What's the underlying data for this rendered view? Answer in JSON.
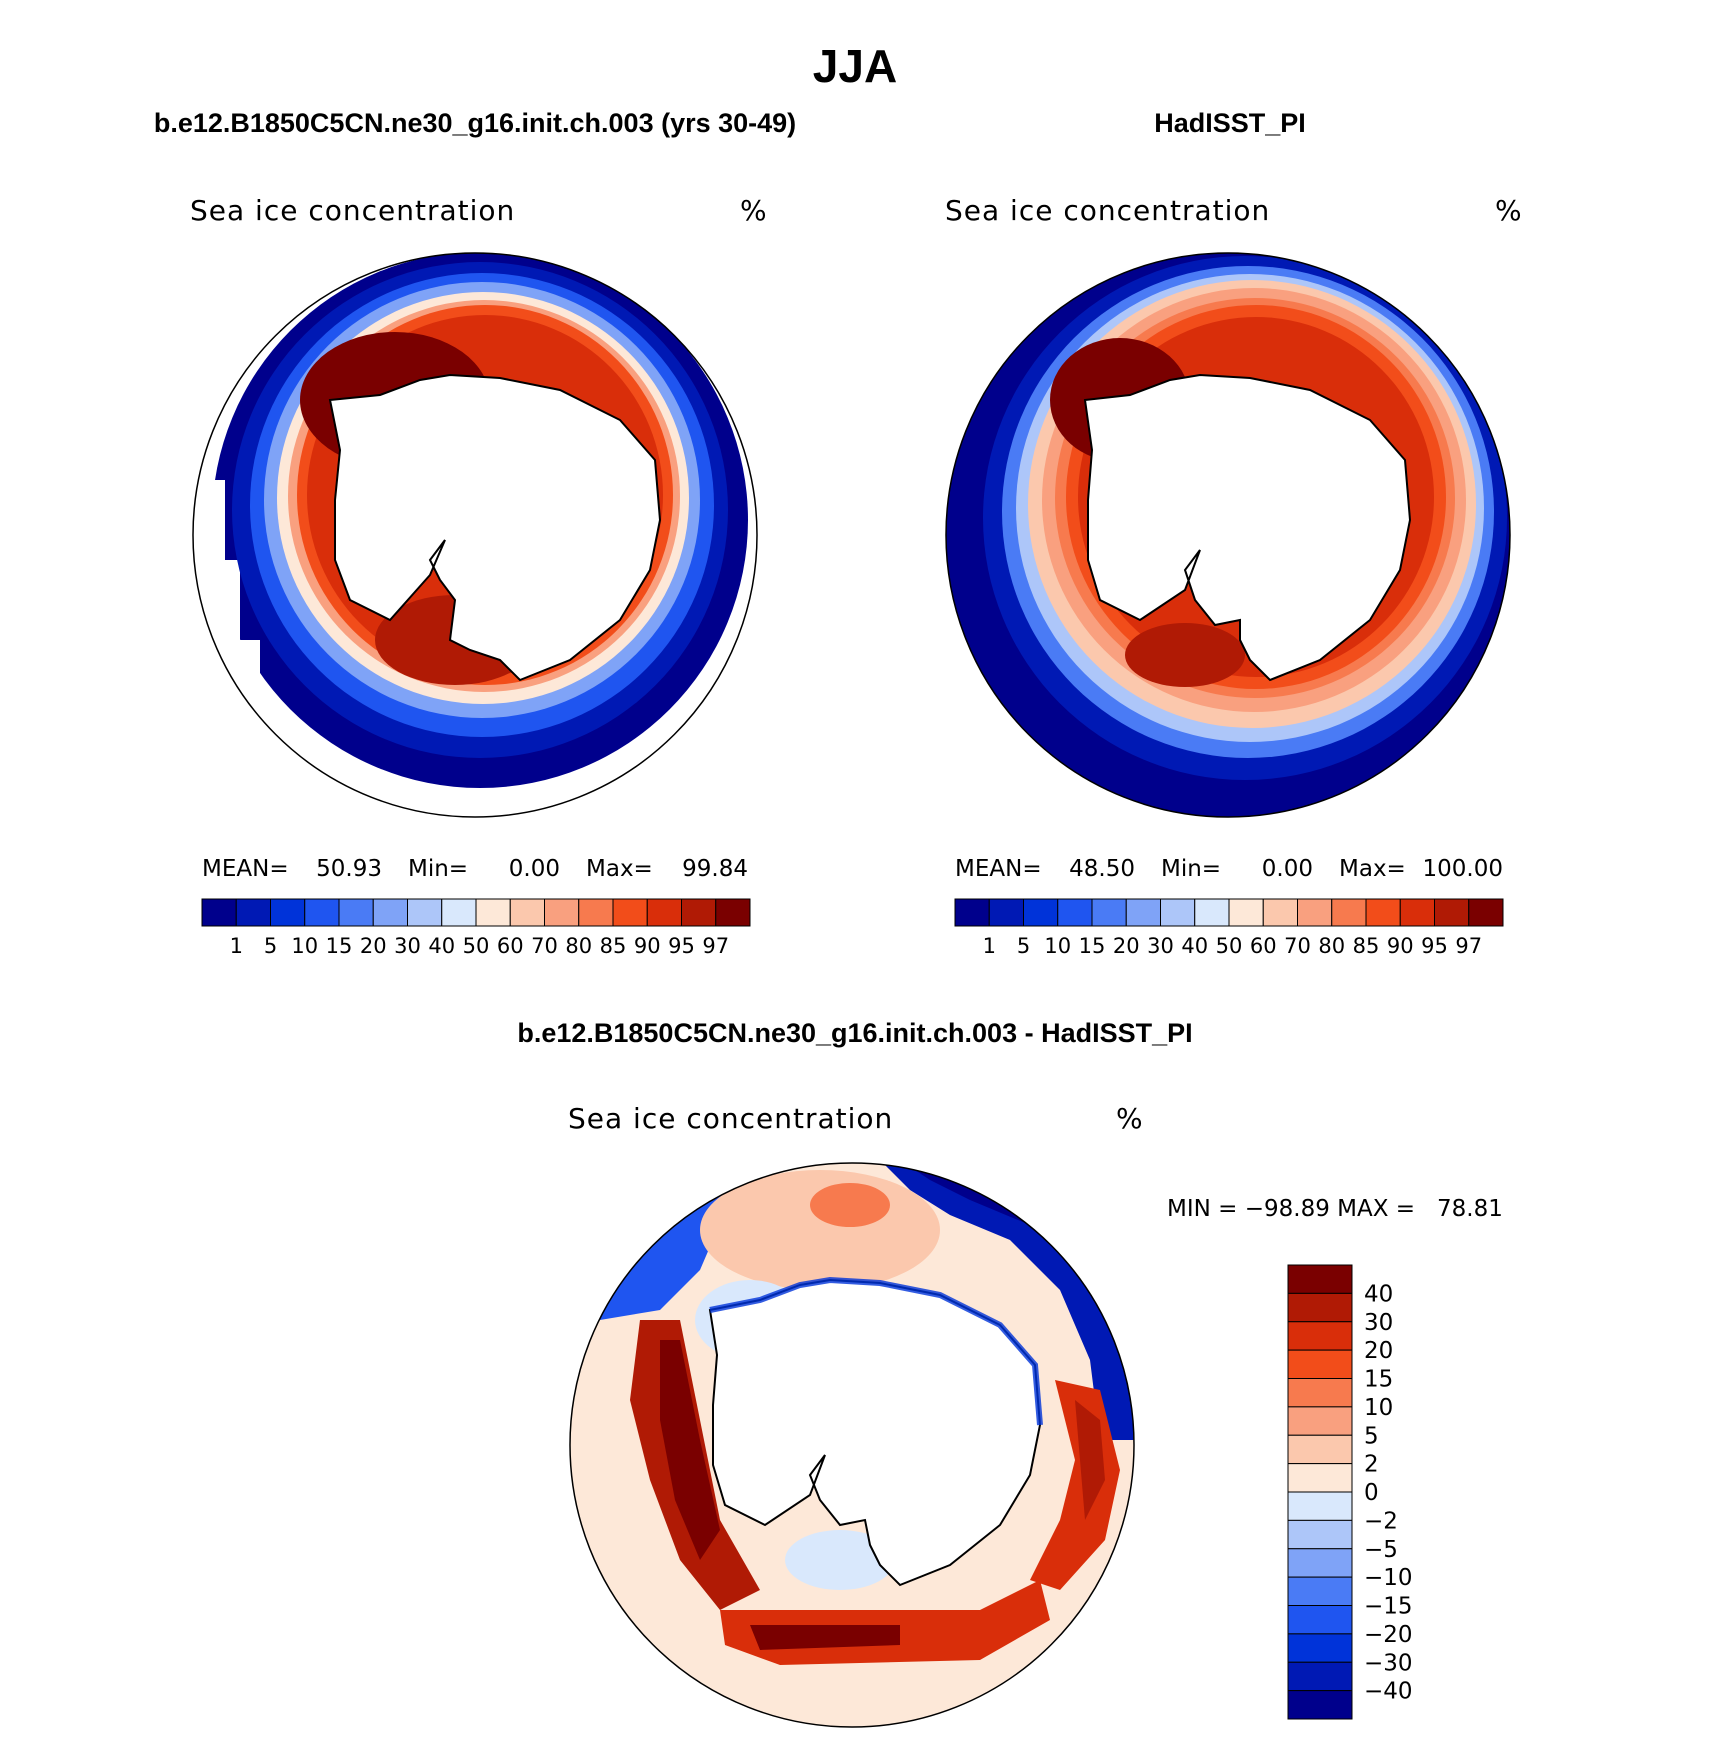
{
  "figure": {
    "season": "JJA",
    "panels": [
      {
        "title": "b.e12.B1850C5CN.ne30_g16.init.ch.003 (yrs 30-49)",
        "variable": "Sea ice concentration",
        "units": "%",
        "stats": {
          "mean_label": "MEAN=",
          "mean": "50.93",
          "min_label": "Min=",
          "min": "0.00",
          "max_label": "Max=",
          "max": "99.84"
        }
      },
      {
        "title": "HadISST_PI",
        "variable": "Sea ice concentration",
        "units": "%",
        "stats": {
          "mean_label": "MEAN=",
          "mean": "48.50",
          "min_label": "Min=",
          "min": "0.00",
          "max_label": "Max=",
          "max": "100.00"
        }
      },
      {
        "title": "b.e12.B1850C5CN.ne30_g16.init.ch.003 - HadISST_PI",
        "variable": "Sea ice concentration",
        "units": "%",
        "range_text": "MIN = −98.89 MAX =   78.81"
      }
    ],
    "colorbar_main": {
      "labels": [
        "1",
        "5",
        "10",
        "15",
        "20",
        "30",
        "40",
        "50",
        "60",
        "70",
        "80",
        "85",
        "90",
        "95",
        "97"
      ],
      "colors": [
        "#00008c",
        "#0019b4",
        "#0033d9",
        "#1f55f0",
        "#4a7bf5",
        "#7fa3f7",
        "#adc6f9",
        "#d9e8fc",
        "#fde8d8",
        "#fbc8ad",
        "#f9a07f",
        "#f77a4e",
        "#f24d1a",
        "#d92e0a",
        "#b01a05",
        "#7a0000"
      ]
    },
    "colorbar_diff": {
      "labels": [
        "40",
        "30",
        "20",
        "15",
        "10",
        "5",
        "2",
        "0",
        "−2",
        "−5",
        "−10",
        "−15",
        "−20",
        "−30",
        "−40"
      ],
      "colors": [
        "#7a0000",
        "#b01a05",
        "#d92e0a",
        "#f24d1a",
        "#f77a4e",
        "#f9a07f",
        "#fbc8ad",
        "#fde8d8",
        "#d9e8fc",
        "#adc6f9",
        "#7fa3f7",
        "#4a7bf5",
        "#1f55f0",
        "#0033d9",
        "#0019b4",
        "#00008c"
      ]
    }
  }
}
